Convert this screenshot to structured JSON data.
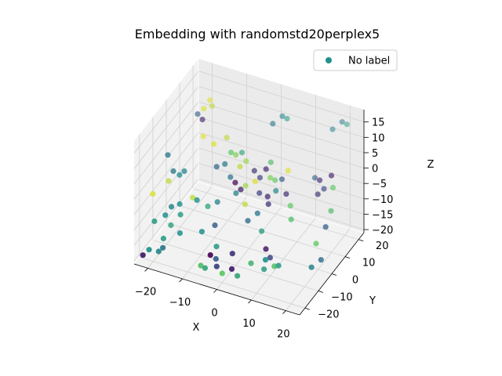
{
  "chart_data": {
    "type": "scatter",
    "projection": "3d",
    "title": "Embedding with randomstd20perplex5",
    "xlabel": "X",
    "ylabel": "Y",
    "zlabel": "Z",
    "xlim": [
      -24,
      24
    ],
    "ylim": [
      -24,
      24
    ],
    "zlim": [
      -21,
      19
    ],
    "xticks": [
      "−20",
      "−10",
      "0",
      "10",
      "20"
    ],
    "xtick_values": [
      -20,
      -10,
      0,
      10,
      20
    ],
    "yticks": [
      "−20",
      "−10",
      "0",
      "10",
      "20"
    ],
    "ytick_values": [
      -20,
      -10,
      0,
      10,
      20
    ],
    "zticks": [
      "−20",
      "−15",
      "−10",
      "−5",
      "0",
      "5",
      "10",
      "15"
    ],
    "ztick_values": [
      -20,
      -15,
      -10,
      -5,
      0,
      5,
      10,
      15
    ],
    "legend": {
      "label": "No label",
      "color": "#21918c",
      "position": "upper-right"
    },
    "colormap": [
      "#440154",
      "#3b528b",
      "#21918c",
      "#5ec962",
      "#fde725"
    ],
    "points": [
      {
        "x": -17,
        "y": 10,
        "z": 13,
        "c": 0.95
      },
      {
        "x": -16,
        "y": 12,
        "z": 15,
        "c": 0.95
      },
      {
        "x": -15,
        "y": 11,
        "z": 14,
        "c": 0.9
      },
      {
        "x": -18,
        "y": 8,
        "z": 12,
        "c": 0.3
      },
      {
        "x": -17,
        "y": 9,
        "z": 10,
        "c": 0.1
      },
      {
        "x": -16,
        "y": 7,
        "z": 6,
        "c": 0.95
      },
      {
        "x": -22,
        "y": -4,
        "z": 4,
        "c": 0.4
      },
      {
        "x": -20,
        "y": -5,
        "z": 0,
        "c": 0.4
      },
      {
        "x": -19,
        "y": -3,
        "z": -2,
        "c": 0.5
      },
      {
        "x": -18,
        "y": -2,
        "z": -1,
        "c": 0.45
      },
      {
        "x": -21,
        "y": -6,
        "z": -3,
        "c": 0.9
      },
      {
        "x": -24,
        "y": -10,
        "z": -6,
        "c": 0.95
      },
      {
        "x": -17,
        "y": -8,
        "z": -8,
        "c": 0.5
      },
      {
        "x": -19,
        "y": -9,
        "z": -9,
        "c": 0.45
      },
      {
        "x": -20,
        "y": -11,
        "z": -11,
        "c": 0.5
      },
      {
        "x": -16,
        "y": -10,
        "z": -10,
        "c": 0.55
      },
      {
        "x": -18,
        "y": -12,
        "z": -13,
        "c": 0.6
      },
      {
        "x": -22,
        "y": -14,
        "z": -12,
        "c": 0.55
      },
      {
        "x": -15,
        "y": -13,
        "z": -14,
        "c": 0.5
      },
      {
        "x": -20,
        "y": -16,
        "z": -20,
        "c": 0.45
      },
      {
        "x": -22,
        "y": -18,
        "z": -19,
        "c": 0.5
      },
      {
        "x": -23,
        "y": -20,
        "z": -20,
        "c": 0.1
      },
      {
        "x": -18,
        "y": -18,
        "z": -17,
        "c": 0.4
      },
      {
        "x": -19,
        "y": -15,
        "z": -16,
        "c": 0.55
      },
      {
        "x": -14,
        "y": -6,
        "z": -6,
        "c": 0.9
      },
      {
        "x": -12,
        "y": -8,
        "z": -5,
        "c": 0.5
      },
      {
        "x": -10,
        "y": -5,
        "z": -8,
        "c": 0.6
      },
      {
        "x": -8,
        "y": -3,
        "z": -7,
        "c": 0.45
      },
      {
        "x": -9,
        "y": -12,
        "z": -12,
        "c": 0.5
      },
      {
        "x": -6,
        "y": -10,
        "z": -10,
        "c": 0.3
      },
      {
        "x": -4,
        "y": -14,
        "z": -14,
        "c": 0.55
      },
      {
        "x": -5,
        "y": -16,
        "z": -16,
        "c": 0.0
      },
      {
        "x": -3,
        "y": -17,
        "z": -16,
        "c": 0.3
      },
      {
        "x": -7,
        "y": -18,
        "z": -19,
        "c": 0.7
      },
      {
        "x": -5,
        "y": -20,
        "z": -18,
        "c": 0.6
      },
      {
        "x": -2,
        "y": -19,
        "z": -17,
        "c": 0.2
      },
      {
        "x": 0,
        "y": -20,
        "z": -18,
        "c": 0.75
      },
      {
        "x": 2,
        "y": -18,
        "z": -17,
        "c": 0.1
      },
      {
        "x": 4,
        "y": -19,
        "z": -18,
        "c": 0.6
      },
      {
        "x": 1,
        "y": -15,
        "z": -14,
        "c": 0.15
      },
      {
        "x": -11,
        "y": 2,
        "z": 8,
        "c": 0.95
      },
      {
        "x": -8,
        "y": 4,
        "z": 10,
        "c": 0.9
      },
      {
        "x": -6,
        "y": 2,
        "z": 7,
        "c": 0.75
      },
      {
        "x": -5,
        "y": 3,
        "z": 6,
        "c": 0.8
      },
      {
        "x": -4,
        "y": 5,
        "z": 6,
        "c": 0.6
      },
      {
        "x": -3,
        "y": 1,
        "z": 4,
        "c": 0.9
      },
      {
        "x": -2,
        "y": 3,
        "z": 5,
        "c": 0.85
      },
      {
        "x": -7,
        "y": 0,
        "z": 4,
        "c": 0.4
      },
      {
        "x": -9,
        "y": -1,
        "z": 3,
        "c": 0.35
      },
      {
        "x": -5,
        "y": -1,
        "z": 1,
        "c": 0.4
      },
      {
        "x": -4,
        "y": 0,
        "z": -1,
        "c": 0.0
      },
      {
        "x": -3,
        "y": -2,
        "z": -3,
        "c": 0.45
      },
      {
        "x": -2,
        "y": -1,
        "z": -2,
        "c": 0.1
      },
      {
        "x": -1,
        "y": 0,
        "z": -1,
        "c": 0.85
      },
      {
        "x": 1,
        "y": 2,
        "z": 0,
        "c": 0.95
      },
      {
        "x": 0,
        "y": 4,
        "z": 2,
        "c": 0.15
      },
      {
        "x": 2,
        "y": 3,
        "z": 1,
        "c": 0.2
      },
      {
        "x": 3,
        "y": 5,
        "z": 3,
        "c": 0.1
      },
      {
        "x": 4,
        "y": 6,
        "z": 5,
        "c": 0.7
      },
      {
        "x": 5,
        "y": 3,
        "z": 2,
        "c": 0.8
      },
      {
        "x": 6,
        "y": 4,
        "z": 1,
        "c": 0.75
      },
      {
        "x": 3,
        "y": 0,
        "z": -2,
        "c": 0.2
      },
      {
        "x": 5,
        "y": 1,
        "z": -3,
        "c": 0.1
      },
      {
        "x": 6,
        "y": -1,
        "z": -4,
        "c": 0.15
      },
      {
        "x": 7,
        "y": 2,
        "z": -1,
        "c": 0.45
      },
      {
        "x": 8,
        "y": 4,
        "z": 2,
        "c": 0.3
      },
      {
        "x": 9,
        "y": 6,
        "z": 4,
        "c": 0.95
      },
      {
        "x": 10,
        "y": 2,
        "z": -1,
        "c": 0.15
      },
      {
        "x": 12,
        "y": 0,
        "z": -3,
        "c": 0.75
      },
      {
        "x": 13,
        "y": -2,
        "z": -6,
        "c": 0.7
      },
      {
        "x": 4,
        "y": -4,
        "z": -6,
        "c": 0.4
      },
      {
        "x": 2,
        "y": -6,
        "z": -8,
        "c": 0.35
      },
      {
        "x": 0,
        "y": -3,
        "z": -5,
        "c": 0.9
      },
      {
        "x": 6,
        "y": -6,
        "z": -10,
        "c": 0.55
      },
      {
        "x": 8,
        "y": -8,
        "z": -14,
        "c": 0.05
      },
      {
        "x": 10,
        "y": -10,
        "z": -15,
        "c": 0.2
      },
      {
        "x": 9,
        "y": -12,
        "z": -18,
        "c": 0.55
      },
      {
        "x": 6,
        "y": -14,
        "z": -16,
        "c": 0.65
      },
      {
        "x": 12,
        "y": -12,
        "z": -16,
        "c": 0.7
      },
      {
        "x": 14,
        "y": -14,
        "z": -14,
        "c": 0.55
      },
      {
        "x": 11,
        "y": -16,
        "z": -12,
        "c": 0.5
      },
      {
        "x": 3,
        "y": 10,
        "z": 15,
        "c": 0.4
      },
      {
        "x": 5,
        "y": 12,
        "z": 17,
        "c": 0.45
      },
      {
        "x": 6,
        "y": 13,
        "z": 16,
        "c": 0.55
      },
      {
        "x": 18,
        "y": 16,
        "z": 15,
        "c": 0.45
      },
      {
        "x": 20,
        "y": 18,
        "z": 17,
        "c": 0.4
      },
      {
        "x": 21,
        "y": 19,
        "z": 16,
        "c": 0.55
      },
      {
        "x": 16,
        "y": 8,
        "z": 3,
        "c": 0.3
      },
      {
        "x": 17,
        "y": 9,
        "z": 2,
        "c": 0.1
      },
      {
        "x": 19,
        "y": 7,
        "z": 1,
        "c": 0.2
      },
      {
        "x": 18,
        "y": 5,
        "z": 0,
        "c": 0.15
      },
      {
        "x": 20,
        "y": 10,
        "z": 4,
        "c": 0.05
      },
      {
        "x": 22,
        "y": 6,
        "z": 3,
        "c": 0.75
      },
      {
        "x": 23,
        "y": 2,
        "z": -2,
        "c": 0.7
      },
      {
        "x": 21,
        "y": -4,
        "z": -10,
        "c": 0.75
      },
      {
        "x": 24,
        "y": -8,
        "z": -12,
        "c": 0.35
      },
      {
        "x": 22,
        "y": -10,
        "z": -14,
        "c": 0.45
      },
      {
        "x": 23,
        "y": -2,
        "z": -5,
        "c": 0.3
      }
    ]
  }
}
